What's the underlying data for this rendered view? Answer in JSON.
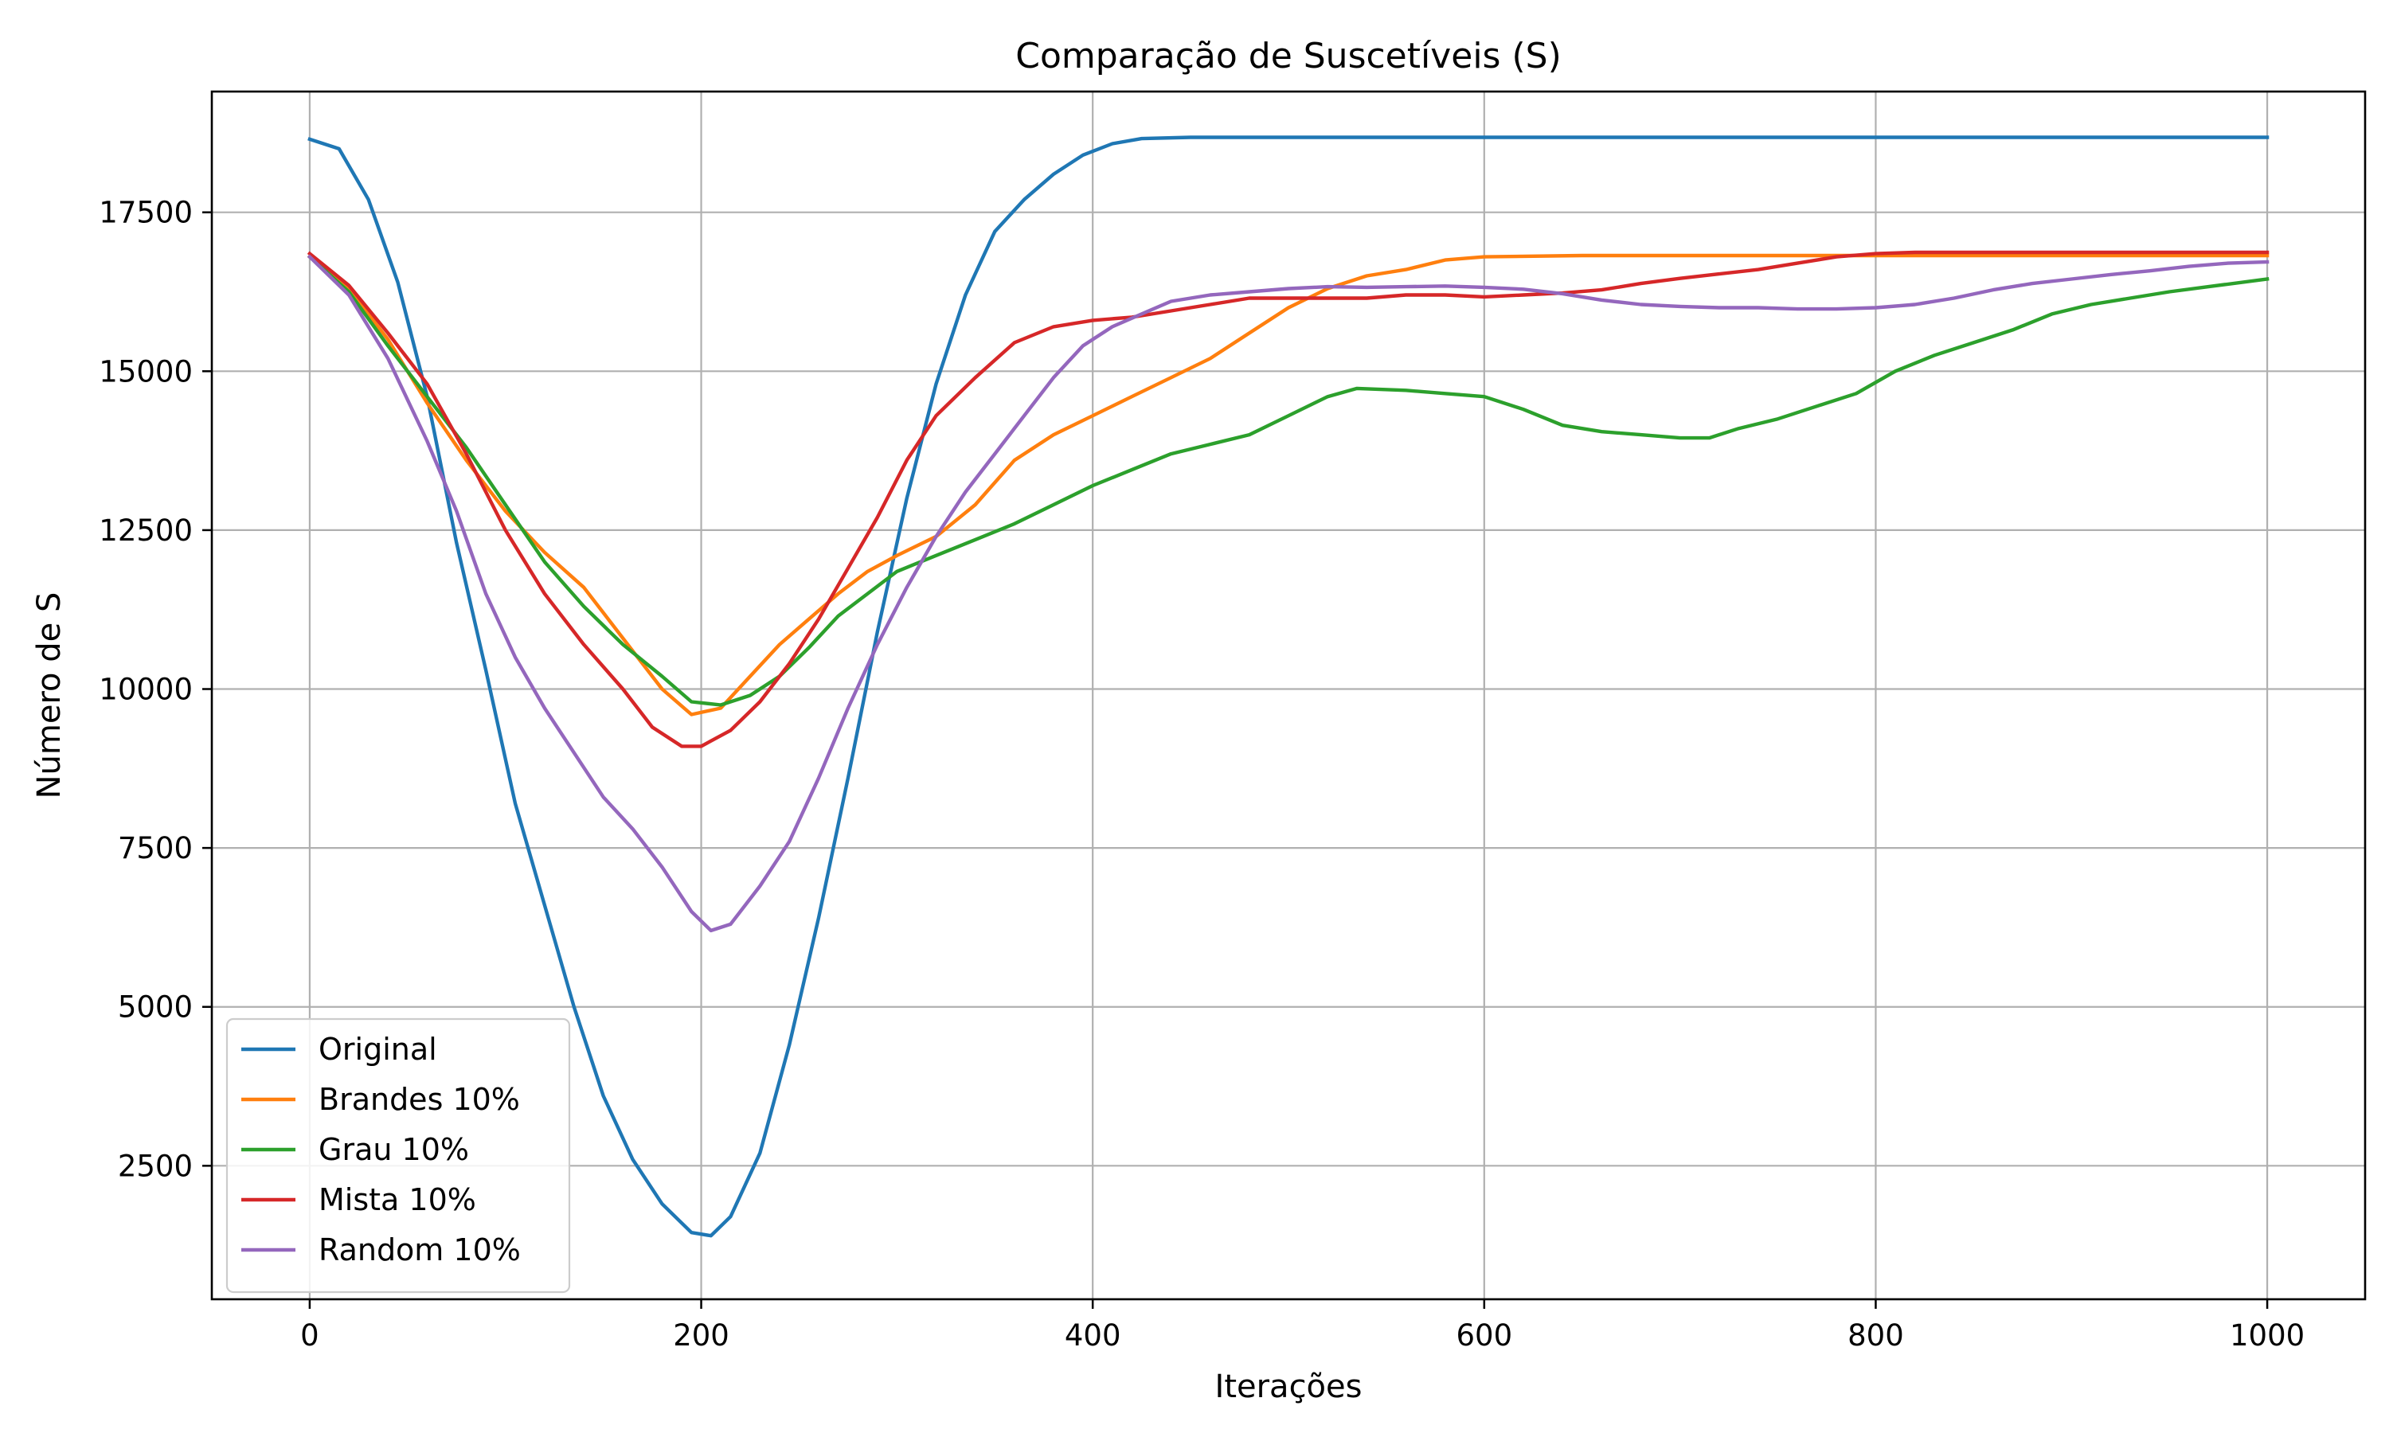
{
  "chart_data": {
    "type": "line",
    "title": "Comparação de Suscetíveis (S)",
    "xlabel": "Iterações",
    "ylabel": "Número de S",
    "xlim": [
      -50,
      1050
    ],
    "ylim": [
      400,
      19400
    ],
    "xticks": [
      0,
      200,
      400,
      600,
      800,
      1000
    ],
    "yticks": [
      2500,
      5000,
      7500,
      10000,
      12500,
      15000,
      17500
    ],
    "grid": true,
    "legend_position": "lower-left",
    "series": [
      {
        "name": "Original",
        "color": "#1f77b4",
        "points": [
          [
            0,
            18650
          ],
          [
            15,
            18500
          ],
          [
            30,
            17700
          ],
          [
            45,
            16400
          ],
          [
            60,
            14600
          ],
          [
            75,
            12300
          ],
          [
            90,
            10300
          ],
          [
            105,
            8200
          ],
          [
            120,
            6600
          ],
          [
            135,
            5000
          ],
          [
            150,
            3600
          ],
          [
            165,
            2600
          ],
          [
            180,
            1900
          ],
          [
            195,
            1450
          ],
          [
            205,
            1400
          ],
          [
            215,
            1700
          ],
          [
            230,
            2700
          ],
          [
            245,
            4400
          ],
          [
            260,
            6400
          ],
          [
            275,
            8600
          ],
          [
            290,
            10900
          ],
          [
            305,
            13000
          ],
          [
            320,
            14800
          ],
          [
            335,
            16200
          ],
          [
            350,
            17200
          ],
          [
            365,
            17700
          ],
          [
            380,
            18100
          ],
          [
            395,
            18400
          ],
          [
            410,
            18580
          ],
          [
            425,
            18660
          ],
          [
            450,
            18680
          ],
          [
            500,
            18680
          ],
          [
            600,
            18680
          ],
          [
            700,
            18680
          ],
          [
            800,
            18680
          ],
          [
            900,
            18680
          ],
          [
            1000,
            18680
          ]
        ]
      },
      {
        "name": "Brandes 10%",
        "color": "#ff7f0e",
        "points": [
          [
            0,
            16800
          ],
          [
            20,
            16300
          ],
          [
            40,
            15500
          ],
          [
            60,
            14500
          ],
          [
            80,
            13600
          ],
          [
            100,
            12800
          ],
          [
            120,
            12150
          ],
          [
            140,
            11600
          ],
          [
            160,
            10800
          ],
          [
            180,
            10000
          ],
          [
            195,
            9600
          ],
          [
            210,
            9700
          ],
          [
            225,
            10200
          ],
          [
            240,
            10700
          ],
          [
            255,
            11100
          ],
          [
            270,
            11500
          ],
          [
            285,
            11850
          ],
          [
            300,
            12100
          ],
          [
            320,
            12400
          ],
          [
            340,
            12900
          ],
          [
            360,
            13600
          ],
          [
            380,
            14000
          ],
          [
            400,
            14300
          ],
          [
            420,
            14600
          ],
          [
            440,
            14900
          ],
          [
            460,
            15200
          ],
          [
            480,
            15600
          ],
          [
            500,
            16000
          ],
          [
            520,
            16300
          ],
          [
            540,
            16500
          ],
          [
            560,
            16600
          ],
          [
            580,
            16750
          ],
          [
            600,
            16800
          ],
          [
            650,
            16820
          ],
          [
            700,
            16820
          ],
          [
            800,
            16820
          ],
          [
            900,
            16820
          ],
          [
            1000,
            16820
          ]
        ]
      },
      {
        "name": "Grau 10%",
        "color": "#2ca02c",
        "points": [
          [
            0,
            16800
          ],
          [
            20,
            16250
          ],
          [
            40,
            15400
          ],
          [
            60,
            14600
          ],
          [
            80,
            13800
          ],
          [
            100,
            12900
          ],
          [
            120,
            12000
          ],
          [
            140,
            11300
          ],
          [
            160,
            10700
          ],
          [
            180,
            10200
          ],
          [
            195,
            9800
          ],
          [
            210,
            9750
          ],
          [
            225,
            9900
          ],
          [
            240,
            10200
          ],
          [
            255,
            10650
          ],
          [
            270,
            11150
          ],
          [
            285,
            11500
          ],
          [
            300,
            11850
          ],
          [
            320,
            12100
          ],
          [
            340,
            12350
          ],
          [
            360,
            12600
          ],
          [
            380,
            12900
          ],
          [
            400,
            13200
          ],
          [
            420,
            13450
          ],
          [
            440,
            13700
          ],
          [
            460,
            13850
          ],
          [
            480,
            14000
          ],
          [
            500,
            14300
          ],
          [
            520,
            14600
          ],
          [
            535,
            14730
          ],
          [
            560,
            14700
          ],
          [
            580,
            14650
          ],
          [
            600,
            14600
          ],
          [
            620,
            14400
          ],
          [
            640,
            14150
          ],
          [
            660,
            14050
          ],
          [
            680,
            14000
          ],
          [
            700,
            13950
          ],
          [
            715,
            13950
          ],
          [
            730,
            14100
          ],
          [
            750,
            14250
          ],
          [
            770,
            14450
          ],
          [
            790,
            14650
          ],
          [
            810,
            15000
          ],
          [
            830,
            15250
          ],
          [
            850,
            15450
          ],
          [
            870,
            15650
          ],
          [
            890,
            15900
          ],
          [
            910,
            16050
          ],
          [
            930,
            16150
          ],
          [
            950,
            16250
          ],
          [
            970,
            16330
          ],
          [
            1000,
            16450
          ]
        ]
      },
      {
        "name": "Mista 10%",
        "color": "#d62728",
        "points": [
          [
            0,
            16850
          ],
          [
            20,
            16350
          ],
          [
            40,
            15600
          ],
          [
            60,
            14800
          ],
          [
            80,
            13700
          ],
          [
            100,
            12500
          ],
          [
            120,
            11500
          ],
          [
            140,
            10700
          ],
          [
            160,
            10000
          ],
          [
            175,
            9400
          ],
          [
            190,
            9100
          ],
          [
            200,
            9100
          ],
          [
            215,
            9350
          ],
          [
            230,
            9800
          ],
          [
            245,
            10400
          ],
          [
            260,
            11100
          ],
          [
            275,
            11900
          ],
          [
            290,
            12700
          ],
          [
            305,
            13600
          ],
          [
            320,
            14300
          ],
          [
            340,
            14900
          ],
          [
            360,
            15450
          ],
          [
            380,
            15700
          ],
          [
            400,
            15800
          ],
          [
            420,
            15850
          ],
          [
            440,
            15950
          ],
          [
            460,
            16050
          ],
          [
            480,
            16150
          ],
          [
            500,
            16150
          ],
          [
            520,
            16150
          ],
          [
            540,
            16150
          ],
          [
            560,
            16200
          ],
          [
            580,
            16200
          ],
          [
            600,
            16170
          ],
          [
            620,
            16200
          ],
          [
            640,
            16230
          ],
          [
            660,
            16280
          ],
          [
            680,
            16380
          ],
          [
            700,
            16460
          ],
          [
            720,
            16530
          ],
          [
            740,
            16600
          ],
          [
            760,
            16700
          ],
          [
            780,
            16800
          ],
          [
            800,
            16850
          ],
          [
            820,
            16870
          ],
          [
            850,
            16870
          ],
          [
            900,
            16870
          ],
          [
            950,
            16870
          ],
          [
            1000,
            16870
          ]
        ]
      },
      {
        "name": "Random 10%",
        "color": "#9467bd",
        "points": [
          [
            0,
            16800
          ],
          [
            20,
            16200
          ],
          [
            40,
            15200
          ],
          [
            60,
            13900
          ],
          [
            75,
            12800
          ],
          [
            90,
            11500
          ],
          [
            105,
            10500
          ],
          [
            120,
            9700
          ],
          [
            135,
            9000
          ],
          [
            150,
            8300
          ],
          [
            165,
            7800
          ],
          [
            180,
            7200
          ],
          [
            195,
            6500
          ],
          [
            205,
            6200
          ],
          [
            215,
            6300
          ],
          [
            230,
            6900
          ],
          [
            245,
            7600
          ],
          [
            260,
            8600
          ],
          [
            275,
            9700
          ],
          [
            290,
            10700
          ],
          [
            305,
            11600
          ],
          [
            320,
            12400
          ],
          [
            335,
            13100
          ],
          [
            350,
            13700
          ],
          [
            365,
            14300
          ],
          [
            380,
            14900
          ],
          [
            395,
            15400
          ],
          [
            410,
            15700
          ],
          [
            425,
            15900
          ],
          [
            440,
            16100
          ],
          [
            460,
            16200
          ],
          [
            480,
            16250
          ],
          [
            500,
            16300
          ],
          [
            520,
            16330
          ],
          [
            540,
            16320
          ],
          [
            560,
            16330
          ],
          [
            580,
            16340
          ],
          [
            600,
            16320
          ],
          [
            620,
            16290
          ],
          [
            640,
            16220
          ],
          [
            660,
            16120
          ],
          [
            680,
            16050
          ],
          [
            700,
            16020
          ],
          [
            720,
            16000
          ],
          [
            740,
            16000
          ],
          [
            760,
            15980
          ],
          [
            780,
            15980
          ],
          [
            800,
            16000
          ],
          [
            820,
            16050
          ],
          [
            840,
            16150
          ],
          [
            860,
            16280
          ],
          [
            880,
            16380
          ],
          [
            900,
            16450
          ],
          [
            920,
            16520
          ],
          [
            940,
            16580
          ],
          [
            960,
            16650
          ],
          [
            980,
            16700
          ],
          [
            1000,
            16720
          ]
        ]
      }
    ]
  }
}
